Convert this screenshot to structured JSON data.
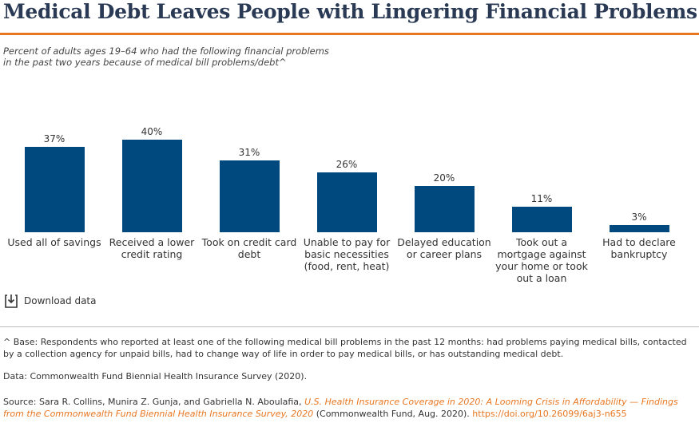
{
  "chart_data": {
    "type": "bar",
    "title": "Medical Debt Leaves People with Lingering Financial Problems",
    "subtitle": "Percent of adults ages 19–64 who had the following financial problems\nin the past two years because of medical bill problems/debt^",
    "categories": [
      "Used all of savings",
      "Received a lower credit rating",
      "Took on credit card debt",
      "Unable to pay for basic necessities (food, rent, heat)",
      "Delayed education or career plans",
      "Took out a mortgage against your home or took out a loan",
      "Had to declare bankruptcy"
    ],
    "values": [
      37,
      40,
      31,
      26,
      20,
      11,
      3
    ],
    "value_labels": [
      "37%",
      "40%",
      "31%",
      "26%",
      "20%",
      "11%",
      "3%"
    ],
    "color": "#00497f"
  },
  "download": "Download data",
  "footnote": "^ Base: Respondents who reported at least one of the following medical bill problems in the past 12 months: had problems paying medical bills, contacted by a collection agency for unpaid bills, had to change way of life in order to pay medical bills, or has outstanding medical debt.",
  "data_note": "Data: Commonwealth Fund Biennial Health Insurance Survey (2020).",
  "source": {
    "prefix": "Source: Sara R. Collins, Munira Z. Gunja, and Gabriella N. Aboulafia,",
    "title": "U.S. Health Insurance Coverage in 2020: A Looming Crisis in Affordability — Findings from the Commonwealth Fund Biennial Health Insurance Survey, 2020",
    "publisher": "(Commonwealth Fund, Aug. 2020).",
    "doi": "https://doi.org/10.26099/6aj3-n655"
  }
}
